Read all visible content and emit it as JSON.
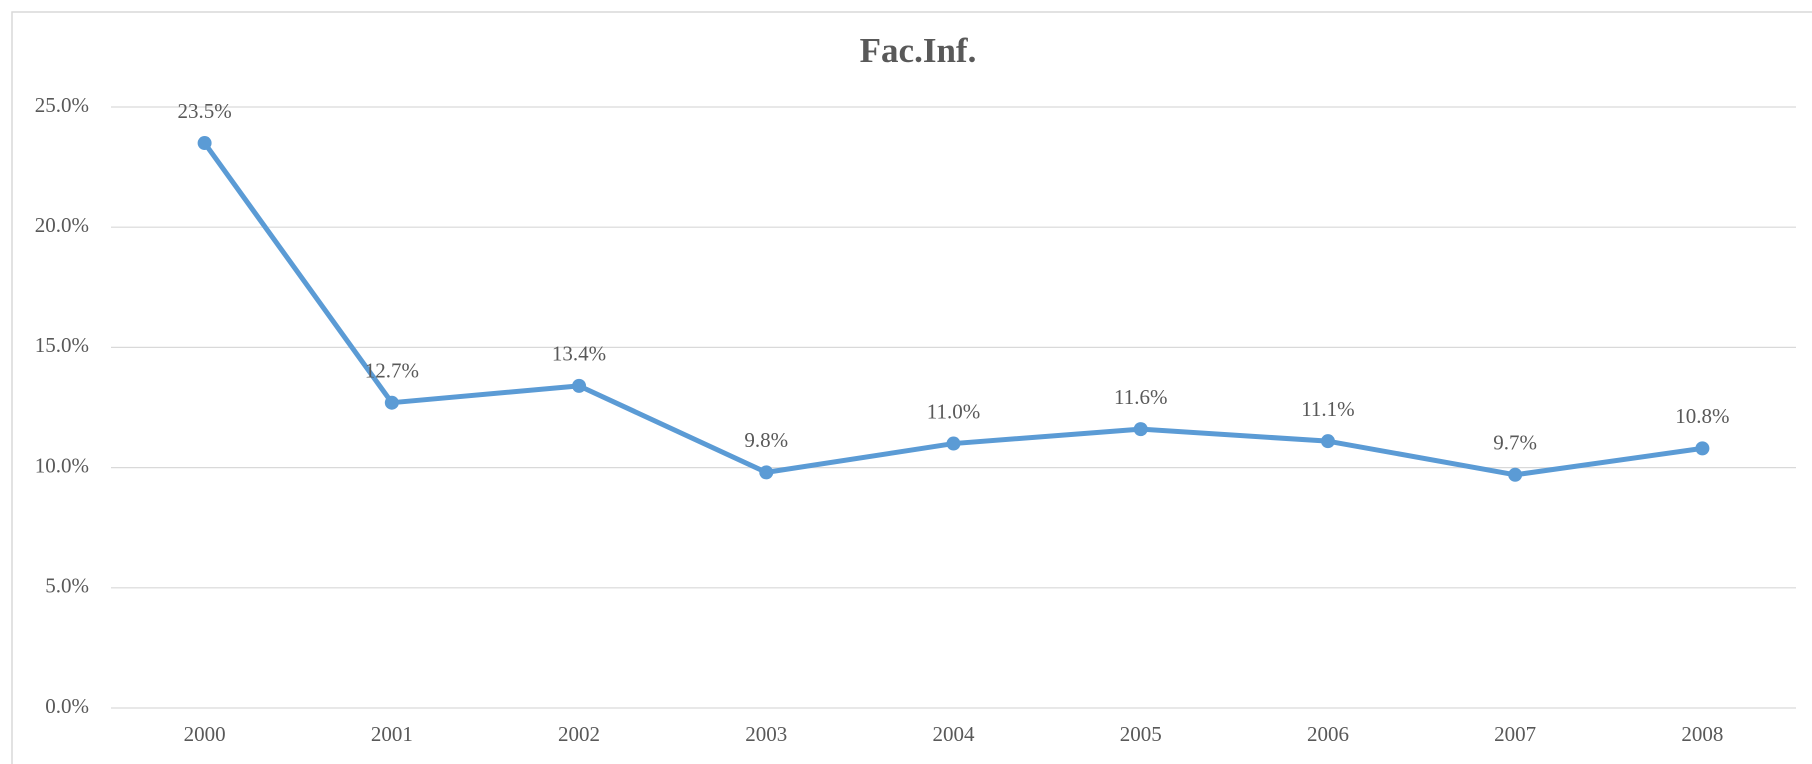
{
  "chart_data": {
    "type": "line",
    "title": "Fac.Inf.",
    "categories": [
      "2000",
      "2001",
      "2002",
      "2003",
      "2004",
      "2005",
      "2006",
      "2007",
      "2008"
    ],
    "series": [
      {
        "name": "Fac.Inf.",
        "color": "#5b9bd5",
        "values": [
          23.5,
          12.7,
          13.4,
          9.8,
          11.0,
          11.6,
          11.1,
          9.7,
          10.8
        ],
        "value_labels": [
          "23.5%",
          "12.7%",
          "13.4%",
          "9.8%",
          "11.0%",
          "11.6%",
          "11.1%",
          "9.7%",
          "10.8%"
        ]
      }
    ],
    "ylim": [
      0,
      25
    ],
    "yticks": [
      {
        "value": 0,
        "label": "0.0%"
      },
      {
        "value": 5,
        "label": "5.0%"
      },
      {
        "value": 10,
        "label": "10.0%"
      },
      {
        "value": 15,
        "label": "15.0%"
      },
      {
        "value": 20,
        "label": "20.0%"
      },
      {
        "value": 25,
        "label": "25.0%"
      }
    ],
    "grid": true
  }
}
